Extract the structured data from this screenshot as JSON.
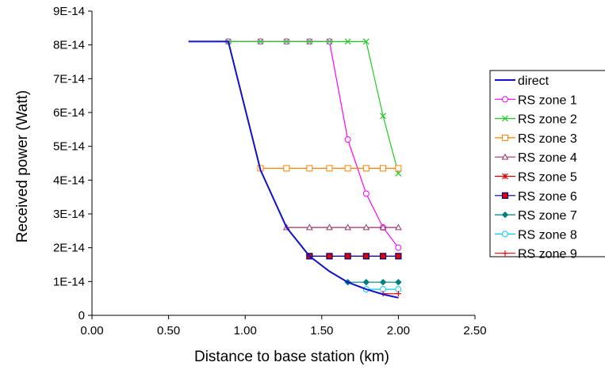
{
  "chart_data": {
    "type": "line",
    "title": "",
    "xlabel": "Distance to base station (km)",
    "ylabel": "Received power (Watt)",
    "xlim": [
      0,
      2.5
    ],
    "ylim": [
      0,
      9e-14
    ],
    "x_ticks": [
      "0.00",
      "0.50",
      "1.00",
      "1.50",
      "2.00",
      "2.50"
    ],
    "y_ticks": [
      "0",
      "1E-14",
      "2E-14",
      "3E-14",
      "4E-14",
      "5E-14",
      "6E-14",
      "7E-14",
      "8E-14",
      "9E-14"
    ],
    "grid": false,
    "legend_position": "right",
    "series": [
      {
        "name": "direct",
        "color": "#1010d0",
        "marker": "none",
        "x": [
          0.63,
          0.89,
          1.1,
          1.27,
          1.42,
          1.55,
          1.67,
          1.79,
          1.9,
          2.0
        ],
        "y": [
          8.1e-14,
          8.1e-14,
          4.3e-14,
          2.6e-14,
          1.75e-14,
          1.3e-14,
          9.8e-15,
          7.7e-15,
          6.2e-15,
          5.2e-15
        ]
      },
      {
        "name": "RS zone 1",
        "color": "#ff00ff",
        "marker": "circle",
        "x": [
          0.89,
          1.1,
          1.27,
          1.42,
          1.55,
          1.67,
          1.79,
          1.9,
          2.0
        ],
        "y": [
          8.1e-14,
          8.1e-14,
          8.1e-14,
          8.1e-14,
          8.1e-14,
          5.2e-14,
          3.6e-14,
          2.6e-14,
          2e-14
        ]
      },
      {
        "name": "RS zone 2",
        "color": "#22cc22",
        "marker": "x",
        "x": [
          0.89,
          1.1,
          1.27,
          1.42,
          1.55,
          1.67,
          1.79,
          1.9,
          2.0
        ],
        "y": [
          8.1e-14,
          8.1e-14,
          8.1e-14,
          8.1e-14,
          8.1e-14,
          8.1e-14,
          8.1e-14,
          5.9e-14,
          4.2e-14
        ]
      },
      {
        "name": "RS zone 3",
        "color": "#ff8000",
        "marker": "square-open",
        "x": [
          1.1,
          1.27,
          1.42,
          1.55,
          1.67,
          1.79,
          1.9,
          2.0
        ],
        "y": [
          4.35e-14,
          4.35e-14,
          4.35e-14,
          4.35e-14,
          4.35e-14,
          4.35e-14,
          4.35e-14,
          4.35e-14
        ]
      },
      {
        "name": "RS zone 4",
        "color": "#993366",
        "marker": "triangle",
        "x": [
          1.27,
          1.42,
          1.55,
          1.67,
          1.79,
          1.9,
          2.0
        ],
        "y": [
          2.6e-14,
          2.6e-14,
          2.6e-14,
          2.6e-14,
          2.6e-14,
          2.6e-14,
          2.6e-14
        ]
      },
      {
        "name": "RS zone 5",
        "color": "#e00000",
        "marker": "star",
        "x": [
          1.42,
          1.55,
          1.67,
          1.79,
          1.9,
          2.0
        ],
        "y": [
          1.75e-14,
          1.75e-14,
          1.75e-14,
          1.75e-14,
          1.75e-14,
          1.75e-14
        ]
      },
      {
        "name": "RS zone 6",
        "color": "#000080",
        "marker": "square-filled",
        "x": [
          1.42,
          1.55,
          1.67,
          1.79,
          1.9,
          2.0
        ],
        "y": [
          1.75e-14,
          1.75e-14,
          1.75e-14,
          1.75e-14,
          1.75e-14,
          1.75e-14
        ]
      },
      {
        "name": "RS zone 7",
        "color": "#008080",
        "marker": "diamond",
        "x": [
          1.67,
          1.79,
          1.9,
          2.0
        ],
        "y": [
          9.8e-15,
          9.8e-15,
          9.8e-15,
          9.8e-15
        ]
      },
      {
        "name": "RS zone 8",
        "color": "#00ccff",
        "marker": "circle",
        "x": [
          1.79,
          1.9,
          2.0
        ],
        "y": [
          7.7e-15,
          7.7e-15,
          7.7e-15
        ]
      },
      {
        "name": "RS zone 9",
        "color": "#ff0000",
        "marker": "plus",
        "x": [
          1.9,
          2.0
        ],
        "y": [
          6.4e-15,
          6.4e-15
        ]
      }
    ]
  }
}
